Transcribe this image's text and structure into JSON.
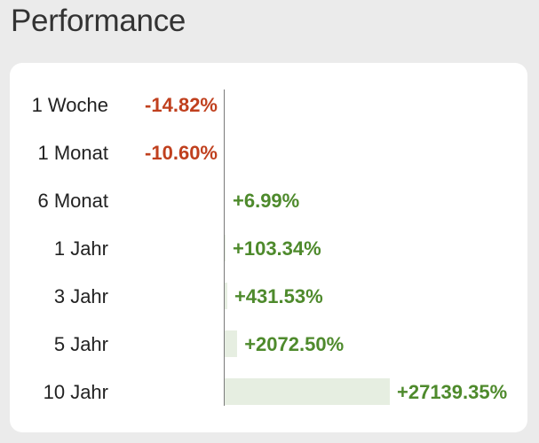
{
  "title": "Performance",
  "colors": {
    "negative": "#c0401e",
    "positive": "#4e8a2c",
    "bar": "#e6eee1",
    "axis": "#7a7a7a"
  },
  "rows": [
    {
      "period": "1 Woche",
      "value_label": "-14.82%",
      "value": -14.82
    },
    {
      "period": "1 Monat",
      "value_label": "-10.60%",
      "value": -10.6
    },
    {
      "period": "6 Monat",
      "value_label": "+6.99%",
      "value": 6.99
    },
    {
      "period": "1 Jahr",
      "value_label": "+103.34%",
      "value": 103.34
    },
    {
      "period": "3 Jahr",
      "value_label": "+431.53%",
      "value": 431.53
    },
    {
      "period": "5 Jahr",
      "value_label": "+2072.50%",
      "value": 2072.5
    },
    {
      "period": "10 Jahr",
      "value_label": "+27139.35%",
      "value": 27139.35
    }
  ]
}
